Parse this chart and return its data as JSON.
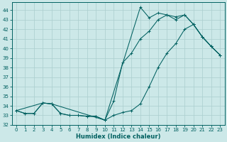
{
  "xlabel": "Humidex (Indice chaleur)",
  "background_color": "#cce8e8",
  "grid_color": "#aacece",
  "line_color": "#006060",
  "xlim": [
    -0.5,
    23.5
  ],
  "ylim": [
    32,
    44.8
  ],
  "yticks": [
    32,
    33,
    34,
    35,
    36,
    37,
    38,
    39,
    40,
    41,
    42,
    43,
    44
  ],
  "xticks": [
    0,
    1,
    2,
    3,
    4,
    5,
    6,
    7,
    8,
    9,
    10,
    11,
    12,
    13,
    14,
    15,
    16,
    17,
    18,
    19,
    20,
    21,
    22,
    23
  ],
  "line1_x": [
    0,
    1,
    2,
    3,
    4,
    5,
    6,
    7,
    8,
    9,
    10,
    11,
    12,
    13,
    14,
    15,
    16,
    17,
    18,
    19,
    20,
    21,
    22,
    23
  ],
  "line1_y": [
    33.5,
    33.2,
    33.2,
    34.3,
    34.2,
    33.2,
    33.0,
    33.0,
    32.9,
    32.9,
    32.5,
    33.0,
    33.3,
    33.5,
    34.2,
    36.0,
    38.0,
    39.5,
    40.5,
    42.0,
    42.5,
    41.2,
    40.2,
    39.3
  ],
  "line2_x": [
    0,
    1,
    2,
    3,
    4,
    5,
    6,
    7,
    8,
    9,
    10,
    11,
    12,
    13,
    14,
    15,
    16,
    17,
    18,
    19,
    20,
    21,
    22,
    23
  ],
  "line2_y": [
    33.5,
    33.2,
    33.2,
    34.3,
    34.2,
    33.2,
    33.0,
    33.0,
    32.9,
    32.9,
    32.5,
    34.5,
    38.5,
    39.5,
    41.0,
    41.8,
    43.0,
    43.5,
    43.3,
    43.5,
    42.5,
    41.2,
    40.2,
    39.3
  ],
  "line3_x": [
    0,
    3,
    4,
    10,
    14,
    15,
    16,
    17,
    18,
    19,
    20,
    21,
    22,
    23
  ],
  "line3_y": [
    33.5,
    34.3,
    34.2,
    32.5,
    44.3,
    43.2,
    43.7,
    43.5,
    43.0,
    43.5,
    42.5,
    41.2,
    40.2,
    39.3
  ]
}
